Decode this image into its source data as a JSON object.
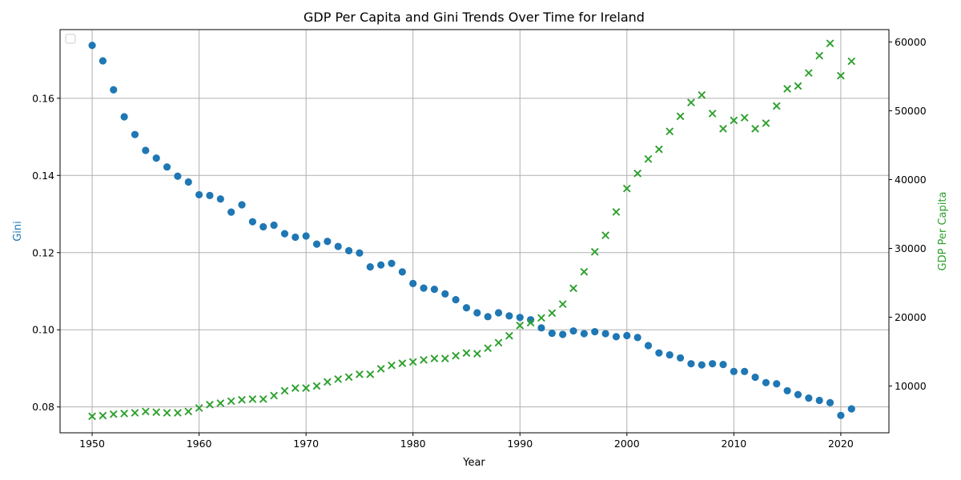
{
  "chart_data": {
    "type": "scatter",
    "title": "GDP Per Capita and Gini Trends Over Time for Ireland",
    "xlabel": "Year",
    "ylabel_left": "Gini",
    "ylabel_right": "GDP Per Capita",
    "xlim": [
      1947,
      2024.5
    ],
    "ylim_left": [
      0.0733,
      0.1778
    ],
    "ylim_right": [
      3200,
      61800
    ],
    "x_ticks": [
      1950,
      1960,
      1970,
      1980,
      1990,
      2000,
      2010,
      2020
    ],
    "y_ticks_left": [
      0.08,
      0.1,
      0.12,
      0.14,
      0.16
    ],
    "y_ticks_left_labels": [
      "0.08",
      "0.10",
      "0.12",
      "0.14",
      "0.16"
    ],
    "y_ticks_right": [
      10000,
      20000,
      30000,
      40000,
      50000,
      60000
    ],
    "y_ticks_right_labels": [
      "10000",
      "20000",
      "30000",
      "40000",
      "50000",
      "60000"
    ],
    "grid": true,
    "legend": "top-left (empty)",
    "colors": {
      "gini": "#1f77b4",
      "gdp": "#2ca02c"
    },
    "x": [
      1950,
      1951,
      1952,
      1953,
      1954,
      1955,
      1956,
      1957,
      1958,
      1959,
      1960,
      1961,
      1962,
      1963,
      1964,
      1965,
      1966,
      1967,
      1968,
      1969,
      1970,
      1971,
      1972,
      1973,
      1974,
      1975,
      1976,
      1977,
      1978,
      1979,
      1980,
      1981,
      1982,
      1983,
      1984,
      1985,
      1986,
      1987,
      1988,
      1989,
      1990,
      1991,
      1992,
      1993,
      1994,
      1995,
      1996,
      1997,
      1998,
      1999,
      2000,
      2001,
      2002,
      2003,
      2004,
      2005,
      2006,
      2007,
      2008,
      2009,
      2010,
      2011,
      2012,
      2013,
      2014,
      2015,
      2016,
      2017,
      2018,
      2019,
      2020,
      2021
    ],
    "series": [
      {
        "axis": "left",
        "marker": "circle",
        "values": [
          0.1737,
          0.1697,
          0.1622,
          0.1552,
          0.1506,
          0.1465,
          0.1445,
          0.1422,
          0.1398,
          0.1383,
          0.135,
          0.1348,
          0.1339,
          0.1305,
          0.1324,
          0.128,
          0.1267,
          0.1271,
          0.1249,
          0.124,
          0.1243,
          0.1222,
          0.1229,
          0.1216,
          0.1205,
          0.1199,
          0.1163,
          0.1168,
          0.1172,
          0.115,
          0.112,
          0.1108,
          0.1105,
          0.1093,
          0.1078,
          0.1057,
          0.1044,
          0.1034,
          0.1044,
          0.1036,
          0.1032,
          0.1026,
          0.1005,
          0.0991,
          0.0988,
          0.0997,
          0.099,
          0.0995,
          0.099,
          0.0982,
          0.0985,
          0.098,
          0.0959,
          0.094,
          0.0935,
          0.0927,
          0.0912,
          0.0909,
          0.0912,
          0.091,
          0.0892,
          0.0892,
          0.0877,
          0.0863,
          0.086,
          0.0842,
          0.0832,
          0.0823,
          0.0817,
          0.0811,
          0.0778,
          0.0795
        ]
      },
      {
        "axis": "right",
        "marker": "x",
        "values": [
          5600,
          5700,
          5900,
          6000,
          6100,
          6300,
          6200,
          6100,
          6100,
          6300,
          6800,
          7300,
          7500,
          7800,
          8000,
          8100,
          8100,
          8600,
          9300,
          9700,
          9700,
          10000,
          10600,
          11000,
          11300,
          11700,
          11700,
          12500,
          13000,
          13300,
          13500,
          13800,
          14000,
          14000,
          14400,
          14800,
          14700,
          15500,
          16300,
          17300,
          18800,
          19200,
          19900,
          20600,
          21900,
          24200,
          26600,
          29500,
          31900,
          35300,
          38700,
          40900,
          43000,
          44400,
          47000,
          49200,
          51200,
          52300,
          49600,
          47400,
          48600,
          49000,
          47400,
          48200,
          50700,
          53200,
          53600,
          55500,
          58000,
          59800,
          55100,
          57200
        ]
      }
    ]
  }
}
